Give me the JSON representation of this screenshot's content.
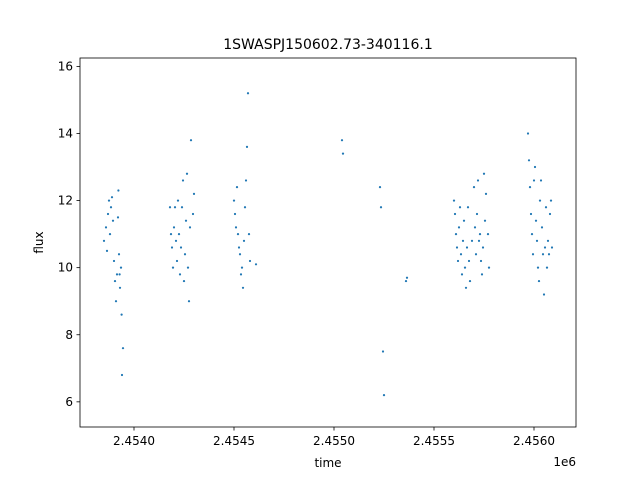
{
  "chart_data": {
    "type": "scatter",
    "title": "1SWASPJ150602.73-340116.1",
    "xlabel": "time",
    "ylabel": "flux",
    "x_offset_label": "1e6",
    "xlim": [
      2453730,
      2456210
    ],
    "ylim": [
      5.25,
      16.25
    ],
    "x_ticks": [
      2.454,
      2.4545,
      2.455,
      2.4555,
      2.456
    ],
    "x_tick_labels": [
      "2.4540",
      "2.4545",
      "2.4550",
      "2.4555",
      "2.4560"
    ],
    "y_ticks": [
      6,
      8,
      10,
      12,
      14,
      16
    ],
    "y_tick_labels": [
      "6",
      "8",
      "10",
      "12",
      "14",
      "16"
    ],
    "grid": false,
    "legend": "none",
    "marker_color": "#1f77b4",
    "series": [
      {
        "values": [
          [
            2453850,
            10.8
          ],
          [
            2453860,
            11.2
          ],
          [
            2453865,
            10.5
          ],
          [
            2453870,
            11.6
          ],
          [
            2453875,
            12.0
          ],
          [
            2453880,
            11.0
          ],
          [
            2453885,
            11.8
          ],
          [
            2453890,
            12.1
          ],
          [
            2453895,
            11.4
          ],
          [
            2453900,
            10.2
          ],
          [
            2453905,
            9.6
          ],
          [
            2453910,
            9.0
          ],
          [
            2453915,
            9.8
          ],
          [
            2453920,
            11.5
          ],
          [
            2453922,
            12.3
          ],
          [
            2453925,
            10.4
          ],
          [
            2453928,
            9.8
          ],
          [
            2453930,
            9.4
          ],
          [
            2453935,
            10.0
          ],
          [
            2453938,
            8.6
          ],
          [
            2453940,
            6.8
          ],
          [
            2453945,
            7.6
          ],
          [
            2454180,
            11.8
          ],
          [
            2454185,
            11.0
          ],
          [
            2454190,
            10.6
          ],
          [
            2454195,
            10.0
          ],
          [
            2454200,
            11.2
          ],
          [
            2454205,
            11.8
          ],
          [
            2454210,
            10.8
          ],
          [
            2454215,
            10.2
          ],
          [
            2454220,
            12.0
          ],
          [
            2454225,
            11.0
          ],
          [
            2454230,
            9.8
          ],
          [
            2454235,
            10.6
          ],
          [
            2454240,
            11.8
          ],
          [
            2454245,
            12.6
          ],
          [
            2454250,
            9.6
          ],
          [
            2454255,
            10.4
          ],
          [
            2454260,
            11.4
          ],
          [
            2454265,
            12.8
          ],
          [
            2454270,
            10.0
          ],
          [
            2454275,
            9.0
          ],
          [
            2454280,
            11.2
          ],
          [
            2454285,
            13.8
          ],
          [
            2454295,
            11.6
          ],
          [
            2454300,
            12.2
          ],
          [
            2454500,
            12.0
          ],
          [
            2454505,
            11.6
          ],
          [
            2454510,
            11.2
          ],
          [
            2454515,
            12.4
          ],
          [
            2454520,
            11.0
          ],
          [
            2454525,
            10.6
          ],
          [
            2454530,
            10.4
          ],
          [
            2454535,
            9.8
          ],
          [
            2454540,
            10.0
          ],
          [
            2454545,
            9.4
          ],
          [
            2454550,
            10.8
          ],
          [
            2454555,
            11.8
          ],
          [
            2454560,
            12.6
          ],
          [
            2454565,
            13.6
          ],
          [
            2454570,
            15.2
          ],
          [
            2454575,
            11.0
          ],
          [
            2454580,
            10.2
          ],
          [
            2454610,
            10.1
          ],
          [
            2455040,
            13.8
          ],
          [
            2455045,
            13.4
          ],
          [
            2455230,
            12.4
          ],
          [
            2455235,
            11.8
          ],
          [
            2455245,
            7.5
          ],
          [
            2455250,
            6.2
          ],
          [
            2455360,
            9.6
          ],
          [
            2455365,
            9.7
          ],
          [
            2455600,
            12.0
          ],
          [
            2455605,
            11.6
          ],
          [
            2455610,
            11.0
          ],
          [
            2455615,
            10.6
          ],
          [
            2455620,
            10.2
          ],
          [
            2455625,
            11.2
          ],
          [
            2455630,
            11.8
          ],
          [
            2455635,
            10.4
          ],
          [
            2455640,
            9.8
          ],
          [
            2455645,
            10.8
          ],
          [
            2455650,
            11.4
          ],
          [
            2455655,
            10.0
          ],
          [
            2455660,
            9.4
          ],
          [
            2455665,
            10.6
          ],
          [
            2455670,
            11.8
          ],
          [
            2455675,
            10.2
          ],
          [
            2455680,
            9.6
          ],
          [
            2455690,
            10.8
          ],
          [
            2455700,
            12.4
          ],
          [
            2455705,
            11.2
          ],
          [
            2455710,
            10.4
          ],
          [
            2455715,
            11.6
          ],
          [
            2455720,
            12.6
          ],
          [
            2455725,
            10.8
          ],
          [
            2455730,
            11.0
          ],
          [
            2455735,
            10.2
          ],
          [
            2455740,
            9.8
          ],
          [
            2455745,
            10.6
          ],
          [
            2455750,
            12.8
          ],
          [
            2455755,
            11.4
          ],
          [
            2455760,
            12.2
          ],
          [
            2455770,
            11.0
          ],
          [
            2455775,
            10.0
          ],
          [
            2455970,
            14.0
          ],
          [
            2455975,
            13.2
          ],
          [
            2455980,
            12.4
          ],
          [
            2455985,
            11.6
          ],
          [
            2455990,
            11.0
          ],
          [
            2455995,
            10.4
          ],
          [
            2456000,
            12.6
          ],
          [
            2456005,
            13.0
          ],
          [
            2456010,
            11.4
          ],
          [
            2456015,
            10.8
          ],
          [
            2456020,
            10.0
          ],
          [
            2456025,
            9.6
          ],
          [
            2456030,
            12.0
          ],
          [
            2456035,
            12.6
          ],
          [
            2456040,
            11.2
          ],
          [
            2456045,
            10.4
          ],
          [
            2456050,
            9.2
          ],
          [
            2456055,
            10.6
          ],
          [
            2456060,
            11.8
          ],
          [
            2456065,
            10.0
          ],
          [
            2456070,
            10.8
          ],
          [
            2456075,
            10.4
          ],
          [
            2456080,
            11.6
          ],
          [
            2456085,
            12.0
          ],
          [
            2456090,
            10.6
          ]
        ]
      }
    ]
  }
}
